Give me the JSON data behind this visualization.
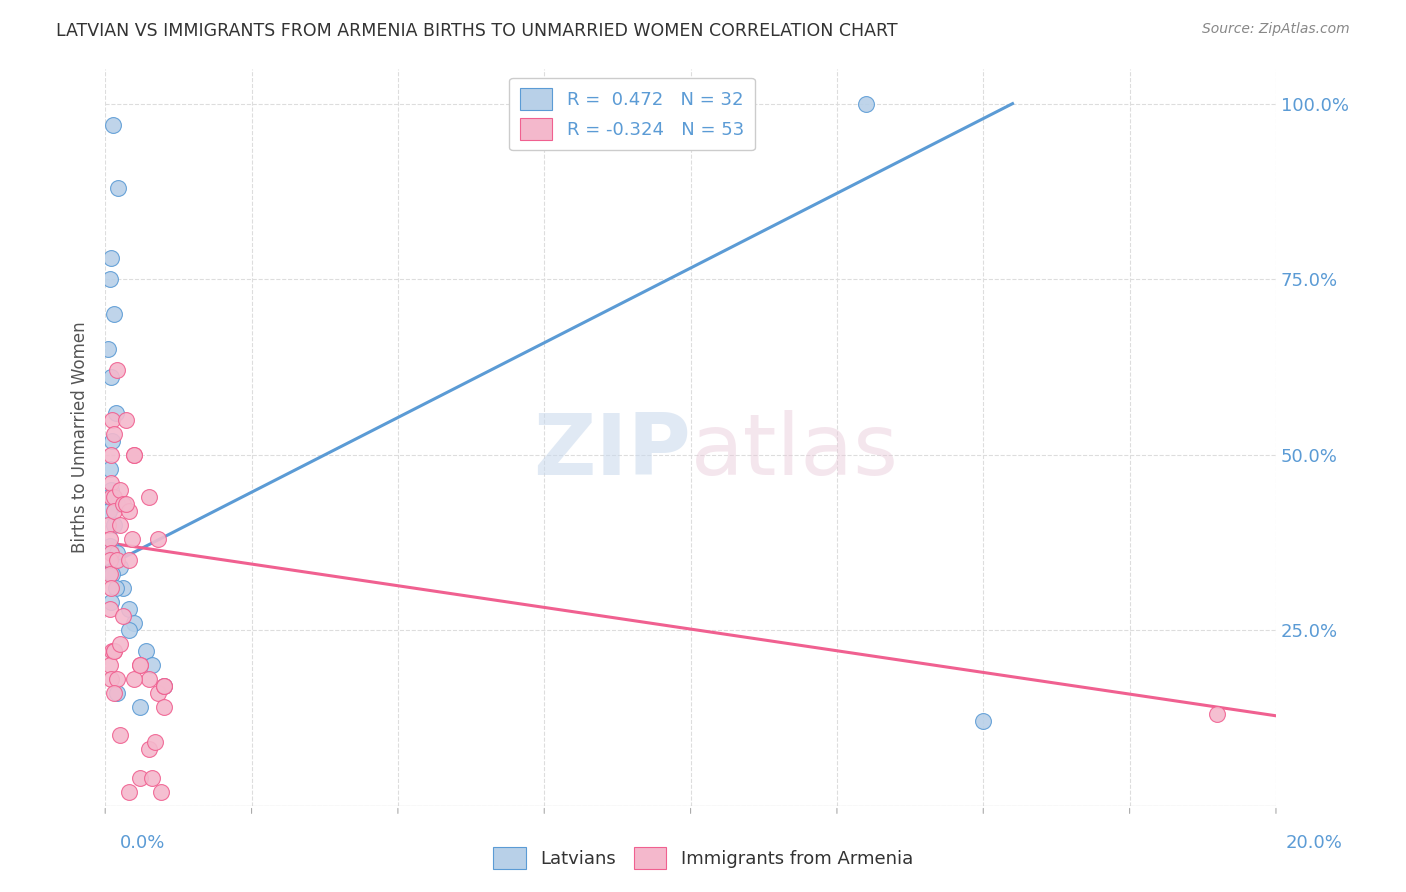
{
  "title": "LATVIAN VS IMMIGRANTS FROM ARMENIA BIRTHS TO UNMARRIED WOMEN CORRELATION CHART",
  "source": "Source: ZipAtlas.com",
  "ylabel": "Births to Unmarried Women",
  "legend_latvians": "Latvians",
  "legend_armenia": "Immigrants from Armenia",
  "R_latvians": 0.472,
  "N_latvians": 32,
  "R_armenia": -0.324,
  "N_armenia": 53,
  "color_latvians": "#b8d0e8",
  "color_armenia": "#f4b8cc",
  "line_color_latvians": "#5b9bd5",
  "line_color_armenia": "#f06090",
  "watermark_color": "#d8e8f4",
  "title_color": "#333333",
  "source_color": "#888888",
  "axis_label_color": "#5b9bd5",
  "grid_color": "#dddddd",
  "background_color": "#ffffff",
  "latvians_x": [
    0.0013,
    0.0022,
    0.001,
    0.0008,
    0.0015,
    0.0005,
    0.001,
    0.0018,
    0.0012,
    0.0008,
    0.001,
    0.0007,
    0.002,
    0.0006,
    0.0015,
    0.0009,
    0.002,
    0.0025,
    0.0012,
    0.003,
    0.0018,
    0.001,
    0.004,
    0.005,
    0.004,
    0.007,
    0.008,
    0.01,
    0.002,
    0.006,
    0.13,
    0.15
  ],
  "latvians_y": [
    0.97,
    0.88,
    0.78,
    0.75,
    0.7,
    0.65,
    0.61,
    0.56,
    0.52,
    0.48,
    0.45,
    0.44,
    0.43,
    0.42,
    0.4,
    0.37,
    0.36,
    0.34,
    0.33,
    0.31,
    0.31,
    0.29,
    0.28,
    0.26,
    0.25,
    0.22,
    0.2,
    0.17,
    0.16,
    0.14,
    1.0,
    0.12
  ],
  "armenia_x": [
    0.0005,
    0.0008,
    0.001,
    0.0012,
    0.0008,
    0.001,
    0.001,
    0.0015,
    0.001,
    0.0015,
    0.0008,
    0.001,
    0.002,
    0.0015,
    0.0025,
    0.0008,
    0.0012,
    0.0015,
    0.0008,
    0.001,
    0.002,
    0.0025,
    0.0015,
    0.003,
    0.0035,
    0.004,
    0.0045,
    0.005,
    0.002,
    0.0025,
    0.0015,
    0.003,
    0.006,
    0.004,
    0.0075,
    0.005,
    0.0035,
    0.0025,
    0.006,
    0.009,
    0.005,
    0.0075,
    0.01,
    0.004,
    0.006,
    0.008,
    0.009,
    0.0075,
    0.01,
    0.01,
    0.0085,
    0.0095,
    0.19
  ],
  "armenia_y": [
    0.4,
    0.38,
    0.36,
    0.55,
    0.35,
    0.44,
    0.46,
    0.44,
    0.5,
    0.42,
    0.33,
    0.31,
    0.62,
    0.53,
    0.4,
    0.28,
    0.22,
    0.22,
    0.2,
    0.18,
    0.35,
    0.45,
    0.22,
    0.43,
    0.55,
    0.42,
    0.38,
    0.5,
    0.18,
    0.23,
    0.16,
    0.27,
    0.2,
    0.35,
    0.18,
    0.18,
    0.43,
    0.1,
    0.2,
    0.16,
    0.5,
    0.44,
    0.17,
    0.02,
    0.04,
    0.04,
    0.38,
    0.08,
    0.17,
    0.14,
    0.09,
    0.02,
    0.13
  ],
  "lat_line_x0": 0.0,
  "lat_line_y0": 0.34,
  "lat_line_x1": 0.155,
  "lat_line_y1": 1.0,
  "arm_line_x0": 0.0,
  "arm_line_y0": 0.375,
  "arm_line_x1": 0.2,
  "arm_line_y1": 0.128,
  "xmin": 0.0,
  "xmax": 0.2,
  "ymin": 0.0,
  "ymax": 1.05
}
